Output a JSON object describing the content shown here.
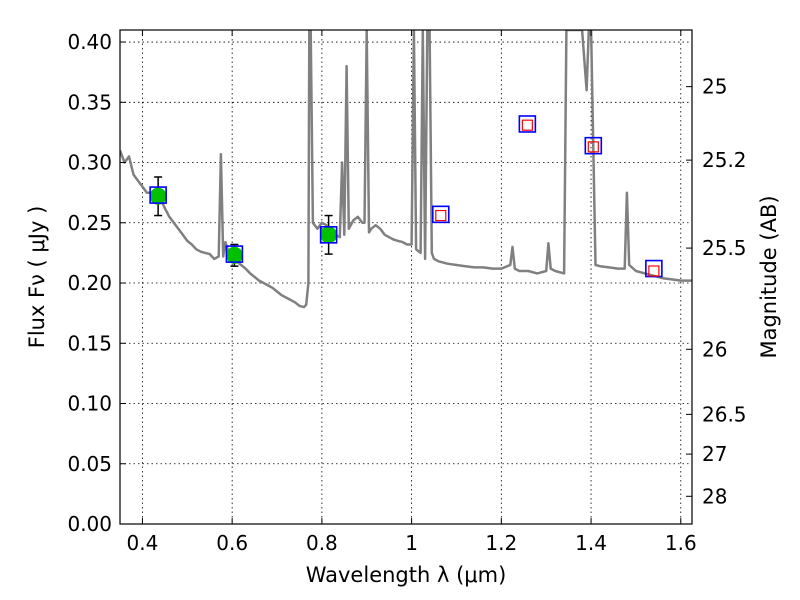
{
  "chart_data": {
    "type": "scatter",
    "xlabel": "Wavelength  λ (μm)",
    "ylabel": "Flux  Fν  ( μJy )",
    "y2label": "Magnitude (AB)",
    "xlim": [
      0.35,
      1.625
    ],
    "ylim": [
      0.0,
      0.41
    ],
    "grid": true,
    "x_ticks": [
      {
        "value": 0.4,
        "label": "0.4"
      },
      {
        "value": 0.6,
        "label": "0.6"
      },
      {
        "value": 0.8,
        "label": "0.8"
      },
      {
        "value": 1.0,
        "label": "1"
      },
      {
        "value": 1.2,
        "label": "1.2"
      },
      {
        "value": 1.4,
        "label": "1.4"
      },
      {
        "value": 1.6,
        "label": "1.6"
      }
    ],
    "y_ticks": [
      {
        "value": 0.0,
        "label": "0.00"
      },
      {
        "value": 0.05,
        "label": "0.05"
      },
      {
        "value": 0.1,
        "label": "0.10"
      },
      {
        "value": 0.15,
        "label": "0.15"
      },
      {
        "value": 0.2,
        "label": "0.20"
      },
      {
        "value": 0.25,
        "label": "0.25"
      },
      {
        "value": 0.3,
        "label": "0.30"
      },
      {
        "value": 0.35,
        "label": "0.35"
      },
      {
        "value": 0.4,
        "label": "0.40"
      }
    ],
    "y2_ticks": [
      {
        "flux": 0.363,
        "label": "25"
      },
      {
        "flux": 0.302,
        "label": "25.2"
      },
      {
        "flux": 0.229,
        "label": "25.5"
      },
      {
        "flux": 0.145,
        "label": "26"
      },
      {
        "flux": 0.091,
        "label": "26.5"
      },
      {
        "flux": 0.058,
        "label": "27"
      },
      {
        "flux": 0.023,
        "label": "28"
      }
    ],
    "series": [
      {
        "type": "line",
        "color": "#808080",
        "x": [
          0.35,
          0.36,
          0.37,
          0.38,
          0.39,
          0.4,
          0.41,
          0.42,
          0.43,
          0.44,
          0.45,
          0.46,
          0.47,
          0.48,
          0.49,
          0.5,
          0.51,
          0.52,
          0.53,
          0.54,
          0.55,
          0.56,
          0.57,
          0.575,
          0.58,
          0.585,
          0.59,
          0.6,
          0.61,
          0.62,
          0.63,
          0.64,
          0.65,
          0.66,
          0.67,
          0.68,
          0.69,
          0.7,
          0.71,
          0.72,
          0.73,
          0.74,
          0.75,
          0.76,
          0.765,
          0.77,
          0.772,
          0.775,
          0.78,
          0.79,
          0.8,
          0.81,
          0.82,
          0.83,
          0.84,
          0.845,
          0.85,
          0.855,
          0.86,
          0.87,
          0.88,
          0.89,
          0.895,
          0.9,
          0.905,
          0.91,
          0.92,
          0.93,
          0.94,
          0.95,
          0.96,
          0.97,
          0.98,
          0.99,
          1.0,
          1.005,
          1.01,
          1.02,
          1.025,
          1.03,
          1.035,
          1.04,
          1.045,
          1.05,
          1.06,
          1.08,
          1.1,
          1.12,
          1.14,
          1.16,
          1.18,
          1.2,
          1.22,
          1.225,
          1.23,
          1.24,
          1.26,
          1.28,
          1.3,
          1.305,
          1.31,
          1.32,
          1.34,
          1.345,
          1.35,
          1.38,
          1.39,
          1.395,
          1.4,
          1.41,
          1.42,
          1.44,
          1.46,
          1.475,
          1.48,
          1.485,
          1.5,
          1.52,
          1.54,
          1.56,
          1.58,
          1.6,
          1.625
        ],
        "y": [
          0.31,
          0.3,
          0.305,
          0.29,
          0.285,
          0.28,
          0.275,
          0.275,
          0.278,
          0.27,
          0.262,
          0.255,
          0.25,
          0.245,
          0.24,
          0.235,
          0.232,
          0.228,
          0.226,
          0.225,
          0.224,
          0.22,
          0.222,
          0.307,
          0.222,
          0.234,
          0.228,
          0.222,
          0.218,
          0.215,
          0.212,
          0.208,
          0.205,
          0.202,
          0.2,
          0.198,
          0.196,
          0.193,
          0.19,
          0.188,
          0.186,
          0.184,
          0.181,
          0.18,
          0.182,
          0.2,
          0.41,
          0.41,
          0.25,
          0.245,
          0.25,
          0.248,
          0.245,
          0.24,
          0.238,
          0.3,
          0.24,
          0.38,
          0.245,
          0.252,
          0.255,
          0.25,
          0.25,
          0.41,
          0.242,
          0.245,
          0.248,
          0.245,
          0.24,
          0.238,
          0.236,
          0.235,
          0.234,
          0.232,
          0.232,
          0.41,
          0.228,
          0.225,
          0.41,
          0.22,
          0.41,
          0.41,
          0.225,
          0.22,
          0.218,
          0.216,
          0.215,
          0.214,
          0.213,
          0.213,
          0.212,
          0.212,
          0.215,
          0.23,
          0.212,
          0.21,
          0.21,
          0.208,
          0.21,
          0.233,
          0.212,
          0.21,
          0.208,
          0.41,
          0.41,
          0.41,
          0.36,
          0.41,
          0.41,
          0.215,
          0.214,
          0.213,
          0.212,
          0.212,
          0.275,
          0.215,
          0.21,
          0.208,
          0.206,
          0.204,
          0.203,
          0.202,
          0.202
        ]
      },
      {
        "type": "scatter",
        "marker": "filled-circle",
        "color": "#00c000",
        "x": [
          0.435,
          0.605,
          0.815
        ],
        "y": [
          0.272,
          0.223,
          0.24
        ],
        "yerr": [
          0.016,
          0.009,
          0.016
        ]
      },
      {
        "type": "scatter",
        "marker": "open-square",
        "color": "#0000ff",
        "x": [
          0.435,
          0.605,
          0.815,
          1.065,
          1.258,
          1.405,
          1.54
        ],
        "y": [
          0.273,
          0.224,
          0.24,
          0.257,
          0.332,
          0.314,
          0.212
        ]
      },
      {
        "type": "scatter",
        "marker": "small-open-square",
        "color": "#ff0000",
        "x": [
          1.065,
          1.258,
          1.405,
          1.54
        ],
        "y": [
          0.256,
          0.331,
          0.313,
          0.21
        ]
      }
    ]
  }
}
